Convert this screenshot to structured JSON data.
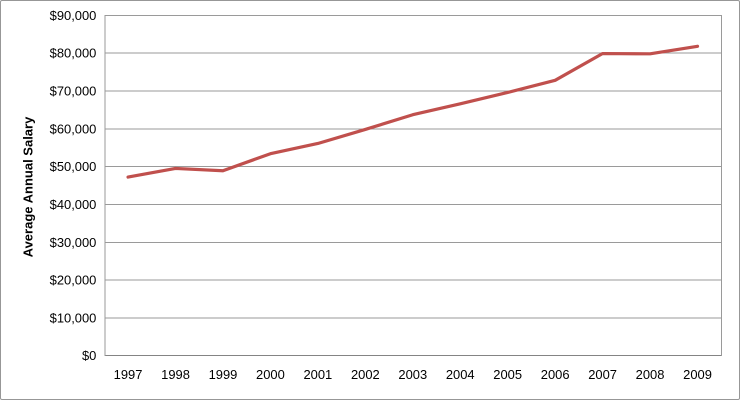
{
  "chart_data": {
    "type": "line",
    "title": "",
    "ylabel": "Average Annual Salary",
    "xlabel": "",
    "categories": [
      "1997",
      "1998",
      "1999",
      "2000",
      "2001",
      "2002",
      "2003",
      "2004",
      "2005",
      "2006",
      "2007",
      "2008",
      "2009"
    ],
    "series": [
      {
        "values": [
          47100,
          49400,
          48800,
          53300,
          56000,
          59700,
          63600,
          66500,
          69500,
          72700,
          79800,
          79700,
          81700
        ]
      }
    ],
    "ylim": [
      0,
      90000
    ],
    "y_ticks": [
      {
        "value": 0,
        "label": "$0"
      },
      {
        "value": 10000,
        "label": "$10,000"
      },
      {
        "value": 20000,
        "label": "$20,000"
      },
      {
        "value": 30000,
        "label": "$30,000"
      },
      {
        "value": 40000,
        "label": "$40,000"
      },
      {
        "value": 50000,
        "label": "$50,000"
      },
      {
        "value": 60000,
        "label": "$60,000"
      },
      {
        "value": 70000,
        "label": "$70,000"
      },
      {
        "value": 80000,
        "label": "$80,000"
      },
      {
        "value": 90000,
        "label": "$90,000"
      }
    ],
    "grid": true,
    "legend": "none",
    "colors": {
      "line": "#c0504d",
      "gridline": "#9a9a9a",
      "axis": "#848484",
      "text": "#000000",
      "background": "#ffffff",
      "frame_border": "#979797"
    }
  }
}
